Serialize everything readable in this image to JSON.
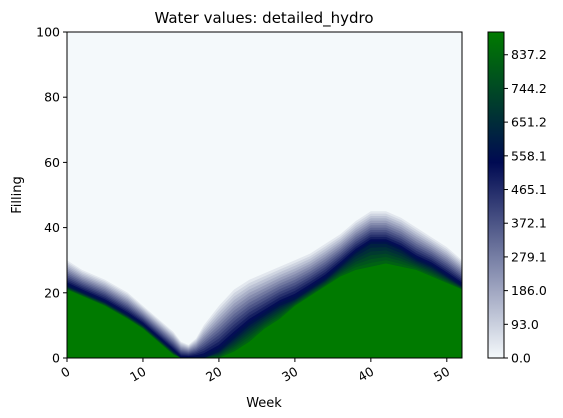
{
  "chart_data": {
    "type": "contour",
    "title": "Water values: detailed_hydro",
    "xlabel": "Week",
    "ylabel": "Filling",
    "xlim": [
      0,
      52
    ],
    "ylim": [
      0,
      100
    ],
    "x_ticks": [
      0,
      10,
      20,
      30,
      40,
      50
    ],
    "y_ticks": [
      0,
      20,
      40,
      60,
      80,
      100
    ],
    "grid": false,
    "colormap": "white-to-blue-to-green",
    "colorbar_ticks": [
      "0.0",
      "93.0",
      "186.0",
      "279.1",
      "372.1",
      "465.1",
      "558.1",
      "651.2",
      "744.2",
      "837.2"
    ],
    "colorbar_range": [
      0,
      900
    ],
    "colors": {
      "low": "#f4f9fb",
      "mid": "#000a52",
      "high": "#007a00"
    },
    "boundaries": {
      "x": [
        0,
        2,
        5,
        8,
        10,
        12,
        13,
        14,
        15,
        16,
        17,
        18,
        20,
        22,
        24,
        26,
        28,
        30,
        32,
        34,
        36,
        38,
        40,
        42,
        44,
        46,
        48,
        50,
        52
      ],
      "outer_edge": [
        30,
        27,
        24,
        20,
        16,
        12,
        10,
        8,
        5,
        4,
        6,
        10,
        16,
        21,
        24,
        26,
        28,
        30,
        32,
        35,
        38,
        42,
        45,
        45,
        43,
        40,
        37,
        34,
        30
      ],
      "dark_band": [
        22,
        20,
        17,
        13,
        10,
        6,
        4,
        2,
        0,
        0,
        0,
        0,
        2,
        6,
        10,
        13,
        16,
        18,
        21,
        24,
        28,
        32,
        35,
        35,
        33,
        30,
        28,
        25,
        22
      ],
      "green_top": [
        21,
        19,
        16,
        12,
        9,
        5,
        3,
        1,
        0,
        0,
        0,
        0,
        0,
        2,
        5,
        9,
        12,
        16,
        19,
        22,
        25,
        27,
        28,
        29,
        28,
        27,
        25,
        23,
        21
      ]
    }
  }
}
